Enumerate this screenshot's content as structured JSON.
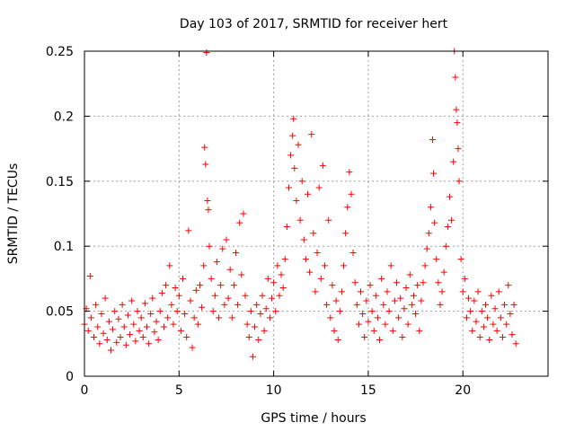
{
  "chart_data": {
    "type": "scatter",
    "title": "Day 103 of 2017, SRMTID for receiver hert",
    "xlabel": "GPS time / hours",
    "ylabel": "SRMTID / TECUs",
    "xlim": [
      0,
      24.5
    ],
    "ylim": [
      0,
      0.25
    ],
    "xticks": [
      0,
      5,
      10,
      15,
      20
    ],
    "xtick_labels": [
      "0",
      "5",
      "10",
      "15",
      "20"
    ],
    "yticks": [
      0,
      0.05,
      0.1,
      0.15,
      0.2,
      0.25
    ],
    "ytick_labels": [
      "0",
      "0.05",
      "0.1",
      "0.15",
      "0.2",
      "0.25"
    ],
    "grid": true,
    "marker": "+",
    "color": "#ff0000",
    "series": [
      {
        "name": "SRMTID",
        "points": [
          [
            0.0,
            0.04
          ],
          [
            0.1,
            0.052
          ],
          [
            0.2,
            0.035
          ],
          [
            0.3,
            0.077
          ],
          [
            0.35,
            0.045
          ],
          [
            0.5,
            0.03
          ],
          [
            0.6,
            0.055
          ],
          [
            0.7,
            0.038
          ],
          [
            0.8,
            0.025
          ],
          [
            0.9,
            0.048
          ],
          [
            1.0,
            0.033
          ],
          [
            1.1,
            0.06
          ],
          [
            1.2,
            0.028
          ],
          [
            1.3,
            0.042
          ],
          [
            1.4,
            0.02
          ],
          [
            1.5,
            0.036
          ],
          [
            1.6,
            0.05
          ],
          [
            1.7,
            0.026
          ],
          [
            1.8,
            0.044
          ],
          [
            1.9,
            0.03
          ],
          [
            2.0,
            0.055
          ],
          [
            2.1,
            0.038
          ],
          [
            2.2,
            0.024
          ],
          [
            2.3,
            0.047
          ],
          [
            2.4,
            0.032
          ],
          [
            2.5,
            0.058
          ],
          [
            2.6,
            0.04
          ],
          [
            2.7,
            0.027
          ],
          [
            2.8,
            0.05
          ],
          [
            2.9,
            0.035
          ],
          [
            3.0,
            0.045
          ],
          [
            3.1,
            0.03
          ],
          [
            3.2,
            0.056
          ],
          [
            3.3,
            0.038
          ],
          [
            3.4,
            0.025
          ],
          [
            3.5,
            0.048
          ],
          [
            3.6,
            0.06
          ],
          [
            3.7,
            0.034
          ],
          [
            3.8,
            0.042
          ],
          [
            3.9,
            0.028
          ],
          [
            4.0,
            0.05
          ],
          [
            4.1,
            0.064
          ],
          [
            4.2,
            0.038
          ],
          [
            4.3,
            0.07
          ],
          [
            4.4,
            0.045
          ],
          [
            4.5,
            0.085
          ],
          [
            4.6,
            0.055
          ],
          [
            4.7,
            0.04
          ],
          [
            4.8,
            0.068
          ],
          [
            4.9,
            0.05
          ],
          [
            5.0,
            0.062
          ],
          [
            5.1,
            0.035
          ],
          [
            5.2,
            0.075
          ],
          [
            5.3,
            0.048
          ],
          [
            5.4,
            0.03
          ],
          [
            5.5,
            0.112
          ],
          [
            5.6,
            0.058
          ],
          [
            5.7,
            0.022
          ],
          [
            5.8,
            0.045
          ],
          [
            5.9,
            0.066
          ],
          [
            6.0,
            0.04
          ],
          [
            6.1,
            0.07
          ],
          [
            6.2,
            0.053
          ],
          [
            6.3,
            0.085
          ],
          [
            6.35,
            0.176
          ],
          [
            6.4,
            0.163
          ],
          [
            6.45,
            0.249
          ],
          [
            6.5,
            0.135
          ],
          [
            6.55,
            0.128
          ],
          [
            6.6,
            0.1
          ],
          [
            6.7,
            0.075
          ],
          [
            6.8,
            0.05
          ],
          [
            6.9,
            0.062
          ],
          [
            7.0,
            0.088
          ],
          [
            7.1,
            0.045
          ],
          [
            7.2,
            0.07
          ],
          [
            7.3,
            0.098
          ],
          [
            7.4,
            0.055
          ],
          [
            7.5,
            0.105
          ],
          [
            7.6,
            0.06
          ],
          [
            7.7,
            0.082
          ],
          [
            7.8,
            0.045
          ],
          [
            7.9,
            0.07
          ],
          [
            8.0,
            0.095
          ],
          [
            8.1,
            0.055
          ],
          [
            8.2,
            0.118
          ],
          [
            8.3,
            0.078
          ],
          [
            8.4,
            0.125
          ],
          [
            8.5,
            0.062
          ],
          [
            8.6,
            0.04
          ],
          [
            8.7,
            0.03
          ],
          [
            8.8,
            0.05
          ],
          [
            8.9,
            0.015
          ],
          [
            9.0,
            0.038
          ],
          [
            9.1,
            0.055
          ],
          [
            9.2,
            0.028
          ],
          [
            9.3,
            0.048
          ],
          [
            9.4,
            0.062
          ],
          [
            9.5,
            0.035
          ],
          [
            9.6,
            0.052
          ],
          [
            9.7,
            0.075
          ],
          [
            9.8,
            0.045
          ],
          [
            9.9,
            0.06
          ],
          [
            10.0,
            0.072
          ],
          [
            10.1,
            0.05
          ],
          [
            10.2,
            0.085
          ],
          [
            10.3,
            0.062
          ],
          [
            10.4,
            0.078
          ],
          [
            10.5,
            0.068
          ],
          [
            10.6,
            0.09
          ],
          [
            10.7,
            0.115
          ],
          [
            10.8,
            0.145
          ],
          [
            10.9,
            0.17
          ],
          [
            11.0,
            0.185
          ],
          [
            11.05,
            0.198
          ],
          [
            11.1,
            0.16
          ],
          [
            11.2,
            0.135
          ],
          [
            11.3,
            0.178
          ],
          [
            11.4,
            0.12
          ],
          [
            11.5,
            0.15
          ],
          [
            11.6,
            0.105
          ],
          [
            11.7,
            0.09
          ],
          [
            11.8,
            0.14
          ],
          [
            11.9,
            0.08
          ],
          [
            12.0,
            0.186
          ],
          [
            12.1,
            0.11
          ],
          [
            12.2,
            0.065
          ],
          [
            12.3,
            0.095
          ],
          [
            12.4,
            0.145
          ],
          [
            12.5,
            0.075
          ],
          [
            12.6,
            0.162
          ],
          [
            12.7,
            0.085
          ],
          [
            12.8,
            0.055
          ],
          [
            12.9,
            0.12
          ],
          [
            13.0,
            0.045
          ],
          [
            13.1,
            0.07
          ],
          [
            13.2,
            0.035
          ],
          [
            13.3,
            0.058
          ],
          [
            13.4,
            0.028
          ],
          [
            13.5,
            0.05
          ],
          [
            13.6,
            0.065
          ],
          [
            13.7,
            0.085
          ],
          [
            13.8,
            0.11
          ],
          [
            13.9,
            0.13
          ],
          [
            14.0,
            0.157
          ],
          [
            14.1,
            0.14
          ],
          [
            14.2,
            0.095
          ],
          [
            14.3,
            0.072
          ],
          [
            14.4,
            0.055
          ],
          [
            14.5,
            0.04
          ],
          [
            14.6,
            0.065
          ],
          [
            14.7,
            0.048
          ],
          [
            14.8,
            0.03
          ],
          [
            14.9,
            0.058
          ],
          [
            15.0,
            0.042
          ],
          [
            15.1,
            0.07
          ],
          [
            15.2,
            0.05
          ],
          [
            15.3,
            0.035
          ],
          [
            15.4,
            0.062
          ],
          [
            15.5,
            0.045
          ],
          [
            15.6,
            0.028
          ],
          [
            15.7,
            0.075
          ],
          [
            15.8,
            0.055
          ],
          [
            15.9,
            0.04
          ],
          [
            16.0,
            0.065
          ],
          [
            16.1,
            0.05
          ],
          [
            16.2,
            0.085
          ],
          [
            16.3,
            0.035
          ],
          [
            16.4,
            0.058
          ],
          [
            16.5,
            0.072
          ],
          [
            16.6,
            0.045
          ],
          [
            16.7,
            0.06
          ],
          [
            16.8,
            0.03
          ],
          [
            16.9,
            0.052
          ],
          [
            17.0,
            0.068
          ],
          [
            17.1,
            0.04
          ],
          [
            17.2,
            0.078
          ],
          [
            17.3,
            0.055
          ],
          [
            17.4,
            0.062
          ],
          [
            17.5,
            0.048
          ],
          [
            17.6,
            0.07
          ],
          [
            17.7,
            0.035
          ],
          [
            17.8,
            0.058
          ],
          [
            17.9,
            0.072
          ],
          [
            18.0,
            0.085
          ],
          [
            18.1,
            0.098
          ],
          [
            18.2,
            0.11
          ],
          [
            18.3,
            0.13
          ],
          [
            18.4,
            0.182
          ],
          [
            18.45,
            0.156
          ],
          [
            18.5,
            0.118
          ],
          [
            18.6,
            0.09
          ],
          [
            18.7,
            0.072
          ],
          [
            18.8,
            0.055
          ],
          [
            18.9,
            0.065
          ],
          [
            19.0,
            0.08
          ],
          [
            19.1,
            0.1
          ],
          [
            19.2,
            0.115
          ],
          [
            19.3,
            0.138
          ],
          [
            19.4,
            0.12
          ],
          [
            19.5,
            0.165
          ],
          [
            19.55,
            0.25
          ],
          [
            19.6,
            0.23
          ],
          [
            19.65,
            0.205
          ],
          [
            19.7,
            0.195
          ],
          [
            19.75,
            0.175
          ],
          [
            19.8,
            0.15
          ],
          [
            19.9,
            0.09
          ],
          [
            20.0,
            0.065
          ],
          [
            20.1,
            0.075
          ],
          [
            20.2,
            0.045
          ],
          [
            20.3,
            0.06
          ],
          [
            20.4,
            0.05
          ],
          [
            20.5,
            0.035
          ],
          [
            20.6,
            0.058
          ],
          [
            20.7,
            0.042
          ],
          [
            20.8,
            0.065
          ],
          [
            20.9,
            0.03
          ],
          [
            21.0,
            0.05
          ],
          [
            21.1,
            0.038
          ],
          [
            21.2,
            0.055
          ],
          [
            21.3,
            0.045
          ],
          [
            21.4,
            0.028
          ],
          [
            21.5,
            0.062
          ],
          [
            21.6,
            0.04
          ],
          [
            21.7,
            0.052
          ],
          [
            21.8,
            0.035
          ],
          [
            21.9,
            0.065
          ],
          [
            22.0,
            0.045
          ],
          [
            22.1,
            0.03
          ],
          [
            22.2,
            0.055
          ],
          [
            22.3,
            0.04
          ],
          [
            22.4,
            0.07
          ],
          [
            22.5,
            0.048
          ],
          [
            22.6,
            0.032
          ],
          [
            22.7,
            0.055
          ],
          [
            22.8,
            0.025
          ]
        ]
      }
    ]
  }
}
